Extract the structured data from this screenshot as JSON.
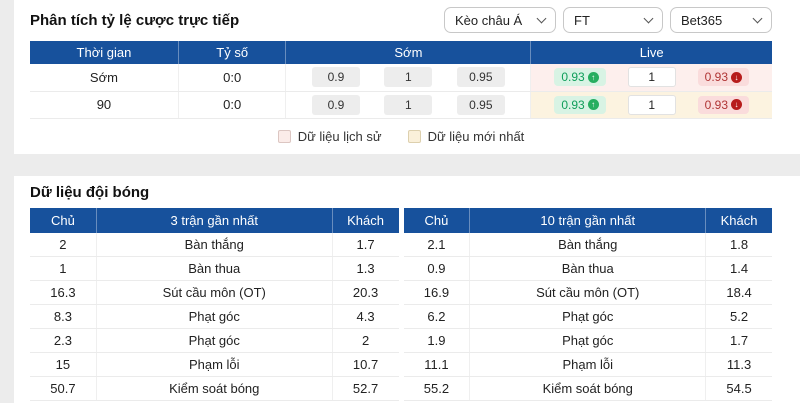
{
  "header": {
    "title": "Phân tích tỷ lệ cược trực tiếp",
    "filters": [
      {
        "value": "Kèo châu Á"
      },
      {
        "value": "FT"
      },
      {
        "value": "Bet365"
      }
    ]
  },
  "odds_table": {
    "columns": [
      "Thời gian",
      "Tỷ số",
      "Sớm",
      "Live"
    ],
    "rows": [
      {
        "time": "Sớm",
        "score": "0:0",
        "early": [
          "0.9",
          "1",
          "0.95"
        ],
        "live": {
          "home": "0.93",
          "home_trend": "up",
          "draw": "1",
          "away": "0.93",
          "away_trend": "down"
        },
        "highlight": "history"
      },
      {
        "time": "90",
        "score": "0:0",
        "early": [
          "0.9",
          "1",
          "0.95"
        ],
        "live": {
          "home": "0.93",
          "home_trend": "up",
          "draw": "1",
          "away": "0.93",
          "away_trend": "down"
        },
        "highlight": "latest"
      }
    ]
  },
  "legend": {
    "items": [
      {
        "label": "Dữ liệu lịch sử",
        "kind": "history",
        "swatch_color": "#fbece9"
      },
      {
        "label": "Dữ liệu mới nhất",
        "kind": "latest",
        "swatch_color": "#faf0da"
      }
    ]
  },
  "team_section": {
    "title": "Dữ liệu đội bóng",
    "tables": [
      {
        "columns": [
          "Chủ",
          "3 trận gần nhất",
          "Khách"
        ],
        "rows": [
          [
            "2",
            "Bàn thắng",
            "1.7"
          ],
          [
            "1",
            "Bàn thua",
            "1.3"
          ],
          [
            "16.3",
            "Sút cầu môn (OT)",
            "20.3"
          ],
          [
            "8.3",
            "Phạt góc",
            "4.3"
          ],
          [
            "2.3",
            "Phạt góc",
            "2"
          ],
          [
            "15",
            "Phạm lỗi",
            "10.7"
          ],
          [
            "50.7",
            "Kiểm soát bóng",
            "52.7"
          ]
        ]
      },
      {
        "columns": [
          "Chủ",
          "10 trận gần nhất",
          "Khách"
        ],
        "rows": [
          [
            "2.1",
            "Bàn thắng",
            "1.8"
          ],
          [
            "0.9",
            "Bàn thua",
            "1.4"
          ],
          [
            "16.9",
            "Sút cầu môn (OT)",
            "18.4"
          ],
          [
            "6.2",
            "Phạt góc",
            "5.2"
          ],
          [
            "1.9",
            "Phạt góc",
            "1.7"
          ],
          [
            "11.1",
            "Phạm lỗi",
            "11.3"
          ],
          [
            "55.2",
            "Kiểm soát bóng",
            "54.5"
          ]
        ]
      }
    ]
  },
  "colors": {
    "header_blue": "#17519c",
    "row_history_bg": "#fdefed",
    "row_latest_bg": "#fcf3e0",
    "trend_up": "#27ae60",
    "trend_down": "#b71c1c"
  }
}
